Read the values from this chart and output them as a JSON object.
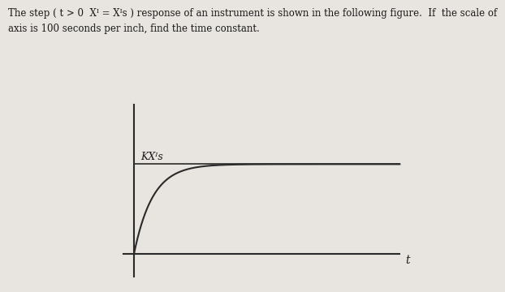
{
  "background_color": "#e8e5e0",
  "axes_bg_color": "#e8e5e0",
  "curve_color": "#2a2a2a",
  "axes_color": "#2a2a2a",
  "label_color": "#1a1a1a",
  "kxis_label": "KXᴵs",
  "t_label": "t",
  "title_line1": "The step ( t > 0  Xᴵ = Xᴵs ) response of an instrument is shown in the following figure.  If  the scale of",
  "title_line2": "axis is 100 seconds per inch, find the time constant.",
  "tau": 0.35,
  "x_max": 5.0,
  "y_max": 1.0,
  "kxis_level": 0.6,
  "y_axis_top": 1.0,
  "font_size_title": 8.5,
  "font_size_label": 9,
  "font_size_kxis": 9
}
